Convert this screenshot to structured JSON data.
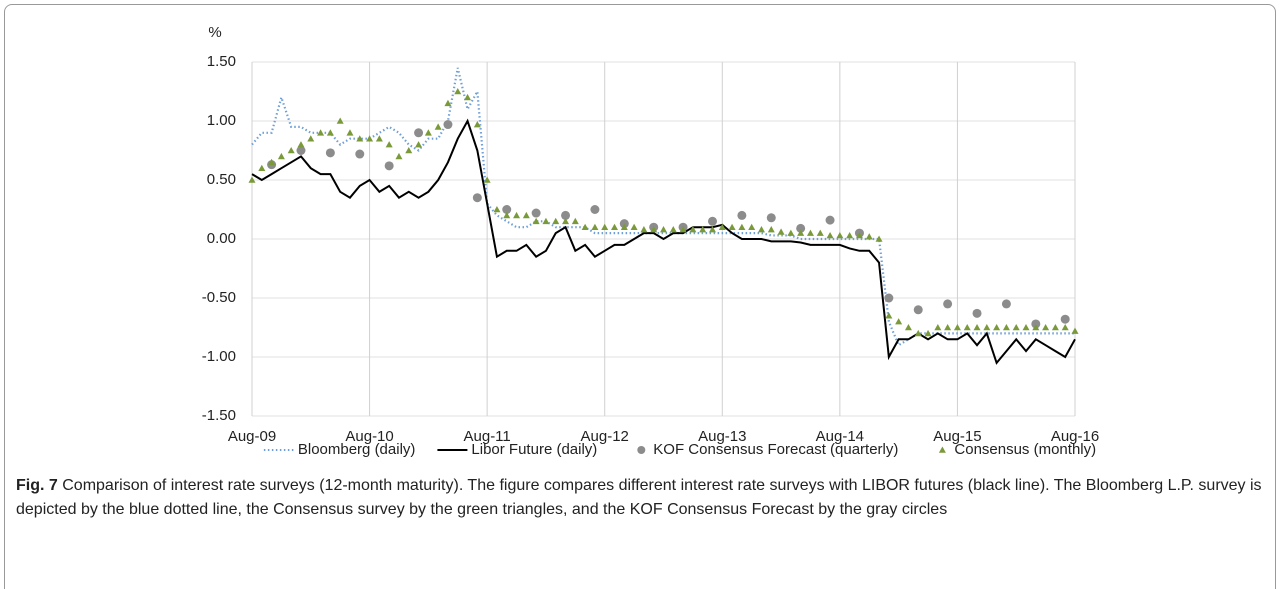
{
  "chart_data": {
    "type": "line",
    "ylabel": "%",
    "ylim": [
      -1.5,
      1.5
    ],
    "yticks": [
      {
        "value": 1.5,
        "label": "1.50"
      },
      {
        "value": 1.0,
        "label": "1.00"
      },
      {
        "value": 0.5,
        "label": "0.50"
      },
      {
        "value": 0,
        "label": "0.00"
      },
      {
        "value": -0.5,
        "label": "-0.50"
      },
      {
        "value": -1.0,
        "label": "-1.00"
      },
      {
        "value": -1.5,
        "label": "-1.50"
      }
    ],
    "xlim": [
      "2009-08",
      "2016-08"
    ],
    "xticks": [
      {
        "value": "2009-08",
        "label": "Aug-09"
      },
      {
        "value": "2010-08",
        "label": "Aug-10"
      },
      {
        "value": "2011-08",
        "label": "Aug-11"
      },
      {
        "value": "2012-08",
        "label": "Aug-12"
      },
      {
        "value": "2013-08",
        "label": "Aug-13"
      },
      {
        "value": "2014-08",
        "label": "Aug-14"
      },
      {
        "value": "2015-08",
        "label": "Aug-15"
      },
      {
        "value": "2016-08",
        "label": "Aug-16"
      }
    ],
    "grid": true,
    "x": [
      "2009-08",
      "2009-09",
      "2009-10",
      "2009-11",
      "2009-12",
      "2010-01",
      "2010-02",
      "2010-03",
      "2010-04",
      "2010-05",
      "2010-06",
      "2010-07",
      "2010-08",
      "2010-09",
      "2010-10",
      "2010-11",
      "2010-12",
      "2011-01",
      "2011-02",
      "2011-03",
      "2011-04",
      "2011-05",
      "2011-06",
      "2011-07",
      "2011-08",
      "2011-09",
      "2011-10",
      "2011-11",
      "2011-12",
      "2012-01",
      "2012-02",
      "2012-03",
      "2012-04",
      "2012-05",
      "2012-06",
      "2012-07",
      "2012-08",
      "2012-09",
      "2012-10",
      "2012-11",
      "2012-12",
      "2013-01",
      "2013-02",
      "2013-03",
      "2013-04",
      "2013-05",
      "2013-06",
      "2013-07",
      "2013-08",
      "2013-09",
      "2013-10",
      "2013-11",
      "2013-12",
      "2014-01",
      "2014-02",
      "2014-03",
      "2014-04",
      "2014-05",
      "2014-06",
      "2014-07",
      "2014-08",
      "2014-09",
      "2014-10",
      "2014-11",
      "2014-12",
      "2015-01",
      "2015-02",
      "2015-03",
      "2015-04",
      "2015-05",
      "2015-06",
      "2015-07",
      "2015-08",
      "2015-09",
      "2015-10",
      "2015-11",
      "2015-12",
      "2016-01",
      "2016-02",
      "2016-03",
      "2016-04",
      "2016-05",
      "2016-06",
      "2016-07",
      "2016-08"
    ],
    "series": [
      {
        "name": "Bloomberg (daily)",
        "style": "dotted",
        "color": "#6f9fd8",
        "values": [
          0.8,
          0.9,
          0.9,
          1.2,
          0.95,
          0.95,
          0.9,
          0.9,
          0.9,
          0.8,
          0.85,
          0.85,
          0.85,
          0.9,
          0.95,
          0.9,
          0.8,
          0.75,
          0.85,
          0.85,
          1.0,
          1.45,
          1.1,
          1.25,
          0.3,
          0.2,
          0.15,
          0.1,
          0.1,
          0.15,
          0.15,
          0.1,
          0.1,
          0.1,
          0.1,
          0.05,
          0.05,
          0.05,
          0.05,
          0.05,
          0.05,
          0.05,
          0.05,
          0.05,
          0.05,
          0.05,
          0.05,
          0.05,
          0.05,
          0.05,
          0.05,
          0.05,
          0.05,
          0.03,
          0.03,
          0.03,
          0,
          0,
          0,
          0,
          0,
          0,
          0,
          0,
          0,
          -0.7,
          -0.9,
          -0.85,
          -0.8,
          -0.8,
          -0.8,
          -0.8,
          -0.8,
          -0.8,
          -0.8,
          -0.8,
          -0.8,
          -0.8,
          -0.8,
          -0.8,
          -0.8,
          -0.8,
          -0.8,
          -0.8,
          -0.8
        ]
      },
      {
        "name": "Libor Future (daily)",
        "style": "solid",
        "color": "#000000",
        "values": [
          0.55,
          0.5,
          0.55,
          0.6,
          0.65,
          0.7,
          0.6,
          0.55,
          0.55,
          0.4,
          0.35,
          0.45,
          0.5,
          0.4,
          0.45,
          0.35,
          0.4,
          0.35,
          0.4,
          0.5,
          0.65,
          0.85,
          1.0,
          0.75,
          0.3,
          -0.15,
          -0.1,
          -0.1,
          -0.05,
          -0.15,
          -0.1,
          0.05,
          0.1,
          -0.1,
          -0.05,
          -0.15,
          -0.1,
          -0.05,
          -0.05,
          0,
          0.05,
          0.05,
          0,
          0.05,
          0.05,
          0.1,
          0.1,
          0.1,
          0.12,
          0.05,
          0,
          0,
          0,
          -0.02,
          -0.02,
          -0.02,
          -0.03,
          -0.05,
          -0.05,
          -0.05,
          -0.05,
          -0.08,
          -0.1,
          -0.1,
          -0.2,
          -1.0,
          -0.85,
          -0.85,
          -0.8,
          -0.85,
          -0.8,
          -0.85,
          -0.85,
          -0.8,
          -0.9,
          -0.8,
          -1.05,
          -0.95,
          -0.85,
          -0.95,
          -0.85,
          -0.9,
          -0.95,
          -1.0,
          -0.85
        ]
      },
      {
        "name": "KOF Consensus Forecast (quarterly)",
        "style": "circle",
        "color": "#8c8c8c",
        "x": [
          "2009-10",
          "2010-01",
          "2010-04",
          "2010-07",
          "2010-10",
          "2011-01",
          "2011-04",
          "2011-07",
          "2011-10",
          "2012-01",
          "2012-04",
          "2012-07",
          "2012-10",
          "2013-01",
          "2013-04",
          "2013-07",
          "2013-10",
          "2014-01",
          "2014-04",
          "2014-07",
          "2014-10",
          "2015-01",
          "2015-04",
          "2015-07",
          "2015-10",
          "2016-01",
          "2016-04",
          "2016-07"
        ],
        "values": [
          0.63,
          0.75,
          0.73,
          0.72,
          0.62,
          0.9,
          0.97,
          0.35,
          0.25,
          0.22,
          0.2,
          0.25,
          0.13,
          0.1,
          0.1,
          0.15,
          0.2,
          0.18,
          0.09,
          0.16,
          0.05,
          -0.5,
          -0.6,
          -0.55,
          -0.63,
          -0.55,
          -0.72,
          -0.68
        ]
      },
      {
        "name": "Consensus (monthly)",
        "style": "triangle",
        "color": "#7a9a3a",
        "values": [
          0.5,
          0.6,
          0.65,
          0.7,
          0.75,
          0.8,
          0.85,
          0.9,
          0.9,
          1.0,
          0.9,
          0.85,
          0.85,
          0.85,
          0.8,
          0.7,
          0.75,
          0.8,
          0.9,
          0.95,
          1.15,
          1.25,
          1.2,
          0.97,
          0.5,
          0.25,
          0.2,
          0.2,
          0.2,
          0.15,
          0.15,
          0.15,
          0.15,
          0.15,
          0.1,
          0.1,
          0.1,
          0.1,
          0.1,
          0.1,
          0.08,
          0.08,
          0.08,
          0.08,
          0.08,
          0.08,
          0.08,
          0.08,
          0.1,
          0.1,
          0.1,
          0.1,
          0.08,
          0.08,
          0.06,
          0.05,
          0.05,
          0.05,
          0.05,
          0.03,
          0.03,
          0.03,
          0.03,
          0.02,
          0,
          -0.65,
          -0.7,
          -0.75,
          -0.8,
          -0.8,
          -0.75,
          -0.75,
          -0.75,
          -0.75,
          -0.75,
          -0.75,
          -0.75,
          -0.75,
          -0.75,
          -0.75,
          -0.75,
          -0.75,
          -0.75,
          -0.75,
          -0.78
        ]
      }
    ]
  },
  "caption": {
    "label": "Fig. 7",
    "text": "Comparison of interest rate surveys (12-month maturity). The figure compares different interest rate surveys with LIBOR futures (black line). The Bloomberg L.P. survey is depicted by the blue dotted line, the Consensus survey by the green triangles, and the KOF Consensus Forecast by the gray circles"
  }
}
